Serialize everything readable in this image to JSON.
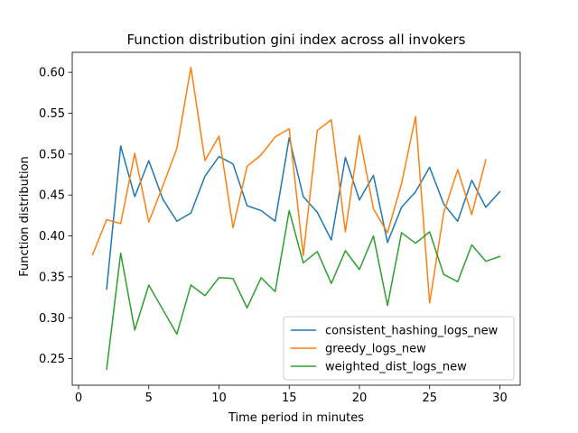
{
  "chart_data": {
    "type": "line",
    "title": "Function distribution gini index across all invokers",
    "xlabel": "Time period in minutes",
    "ylabel": "Function distribution",
    "xlim": [
      -0.45,
      31.45
    ],
    "ylim": [
      0.2176,
      0.6244
    ],
    "xticks": [
      0,
      5,
      10,
      15,
      20,
      25,
      30
    ],
    "yticks": [
      0.25,
      0.3,
      0.35,
      0.4,
      0.45,
      0.5,
      0.55,
      0.6
    ],
    "legend_position": "lower-right",
    "grid": false,
    "series": [
      {
        "name": "consistent_hashing_logs_new",
        "color": "#1f77b4",
        "x": [
          2,
          3,
          4,
          5,
          6,
          7,
          8,
          9,
          10,
          11,
          12,
          13,
          14,
          15,
          16,
          17,
          18,
          19,
          20,
          21,
          22,
          23,
          24,
          25,
          26,
          27,
          28,
          29,
          30
        ],
        "y": [
          0.335,
          0.51,
          0.448,
          0.492,
          0.445,
          0.418,
          0.428,
          0.473,
          0.497,
          0.488,
          0.437,
          0.431,
          0.418,
          0.52,
          0.448,
          0.429,
          0.395,
          0.496,
          0.444,
          0.474,
          0.392,
          0.435,
          0.454,
          0.484,
          0.439,
          0.418,
          0.468,
          0.435,
          0.454
        ]
      },
      {
        "name": "greedy_logs_new",
        "color": "#ff7f0e",
        "x": [
          1,
          2,
          3,
          4,
          5,
          6,
          7,
          8,
          9,
          10,
          11,
          12,
          13,
          14,
          15,
          16,
          17,
          18,
          19,
          20,
          21,
          22,
          23,
          24,
          25,
          26,
          27,
          28,
          29
        ],
        "y": [
          0.377,
          0.42,
          0.415,
          0.501,
          0.417,
          0.461,
          0.507,
          0.606,
          0.492,
          0.522,
          0.41,
          0.485,
          0.499,
          0.521,
          0.531,
          0.376,
          0.529,
          0.542,
          0.405,
          0.523,
          0.433,
          0.404,
          0.464,
          0.546,
          0.318,
          0.428,
          0.481,
          0.426,
          0.493
        ]
      },
      {
        "name": "weighted_dist_logs_new",
        "color": "#2ca02c",
        "x": [
          2,
          3,
          4,
          5,
          6,
          7,
          8,
          9,
          10,
          11,
          12,
          13,
          14,
          15,
          16,
          17,
          18,
          19,
          20,
          21,
          22,
          23,
          24,
          25,
          26,
          27,
          28,
          29,
          30
        ],
        "y": [
          0.237,
          0.379,
          0.285,
          0.34,
          0.31,
          0.28,
          0.34,
          0.327,
          0.349,
          0.348,
          0.312,
          0.349,
          0.332,
          0.431,
          0.367,
          0.381,
          0.342,
          0.382,
          0.359,
          0.4,
          0.315,
          0.404,
          0.391,
          0.405,
          0.353,
          0.344,
          0.389,
          0.369,
          0.375
        ]
      }
    ]
  }
}
